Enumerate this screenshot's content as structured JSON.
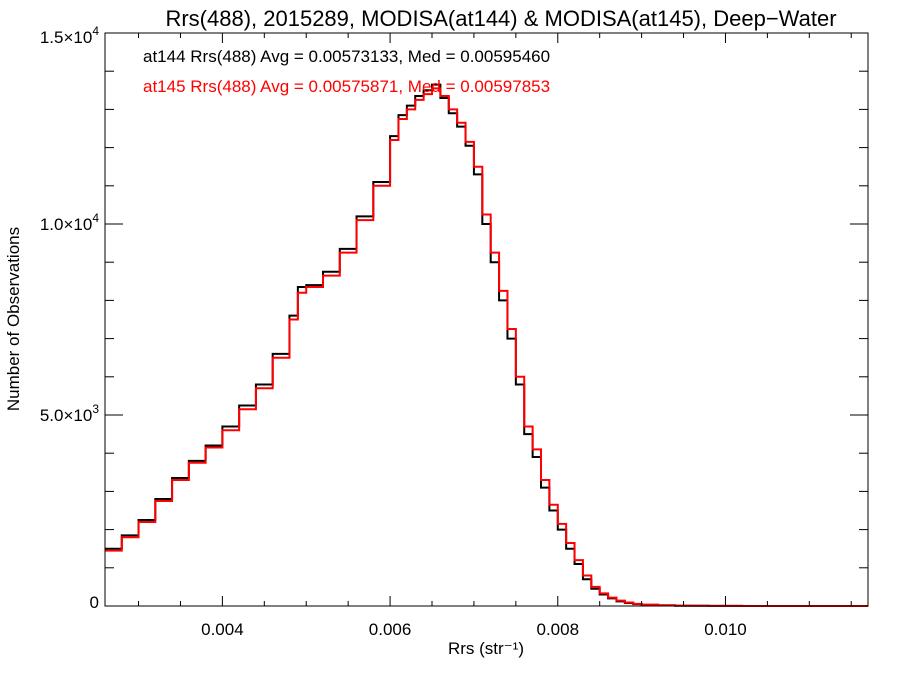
{
  "chart_data": {
    "type": "line",
    "title": "Rrs(488), 2015289, MODISA(at144) & MODISA(at145), Deep−Water",
    "xlabel": "Rrs (str⁻¹)",
    "ylabel": "Number of Observations",
    "xlim": [
      0.0026,
      0.0117
    ],
    "ylim": [
      0,
      15000
    ],
    "x_ticks": [
      {
        "value": 0.004,
        "label": "0.004"
      },
      {
        "value": 0.006,
        "label": "0.006"
      },
      {
        "value": 0.008,
        "label": "0.008"
      },
      {
        "value": 0.01,
        "label": "0.010"
      }
    ],
    "y_ticks": [
      {
        "value": 0,
        "mant": "0",
        "exp": ""
      },
      {
        "value": 5000,
        "mant": "5.0×10",
        "exp": "3"
      },
      {
        "value": 10000,
        "mant": "1.0×10",
        "exp": "4"
      },
      {
        "value": 15000,
        "mant": "1.5×10",
        "exp": "4"
      }
    ],
    "x_minor_step": 0.0005,
    "y_minor_step": 1000,
    "grid": false,
    "series": [
      {
        "name": "at144",
        "color": "#000000",
        "stats_text": "at144 Rrs(488) Avg = 0.00573133, Med = 0.00595460",
        "x": [
          0.0026,
          0.0028,
          0.003,
          0.0032,
          0.0034,
          0.0036,
          0.0038,
          0.004,
          0.0042,
          0.0044,
          0.0046,
          0.0048,
          0.0049,
          0.005,
          0.0052,
          0.0054,
          0.0056,
          0.0058,
          0.006,
          0.0061,
          0.0062,
          0.0063,
          0.0064,
          0.0065,
          0.0066,
          0.0067,
          0.0068,
          0.0069,
          0.007,
          0.0071,
          0.0072,
          0.0073,
          0.0074,
          0.0075,
          0.0076,
          0.0077,
          0.0078,
          0.0079,
          0.008,
          0.0081,
          0.0082,
          0.0083,
          0.0084,
          0.0085,
          0.0086,
          0.0087,
          0.0088,
          0.0089,
          0.009,
          0.0092,
          0.0094,
          0.0096,
          0.0098,
          0.01,
          0.0102,
          0.0105,
          0.011,
          0.0117
        ],
        "y": [
          1500,
          1850,
          2250,
          2800,
          3350,
          3800,
          4200,
          4700,
          5250,
          5800,
          6600,
          7600,
          8350,
          8400,
          8750,
          9350,
          10200,
          11100,
          12300,
          12850,
          13100,
          13350,
          13500,
          13650,
          13300,
          12900,
          12550,
          12050,
          11300,
          10000,
          9000,
          8000,
          7000,
          5800,
          4500,
          3900,
          3100,
          2500,
          2000,
          1500,
          1100,
          700,
          450,
          300,
          200,
          120,
          80,
          50,
          30,
          15,
          8,
          5,
          3,
          2,
          1,
          0,
          0,
          0
        ]
      },
      {
        "name": "at145",
        "color": "#ff0000",
        "stats_text": "at145 Rrs(488) Avg = 0.00575871, Med = 0.00597853",
        "x": [
          0.0026,
          0.0028,
          0.003,
          0.0032,
          0.0034,
          0.0036,
          0.0038,
          0.004,
          0.0042,
          0.0044,
          0.0046,
          0.0048,
          0.0049,
          0.005,
          0.0052,
          0.0054,
          0.0056,
          0.0058,
          0.006,
          0.0061,
          0.0062,
          0.0063,
          0.0064,
          0.0065,
          0.0066,
          0.0067,
          0.0068,
          0.0069,
          0.007,
          0.0071,
          0.0072,
          0.0073,
          0.0074,
          0.0075,
          0.0076,
          0.0077,
          0.0078,
          0.0079,
          0.008,
          0.0081,
          0.0082,
          0.0083,
          0.0084,
          0.0085,
          0.0086,
          0.0087,
          0.0088,
          0.0089,
          0.009,
          0.0092,
          0.0094,
          0.0096,
          0.0098,
          0.01,
          0.0102,
          0.0105,
          0.011,
          0.0117
        ],
        "y": [
          1450,
          1800,
          2200,
          2750,
          3300,
          3750,
          4150,
          4600,
          5150,
          5700,
          6500,
          7500,
          8200,
          8350,
          8650,
          9250,
          10100,
          11000,
          12200,
          12750,
          13000,
          13250,
          13400,
          13550,
          13350,
          13000,
          12650,
          12150,
          11500,
          10250,
          9250,
          8250,
          7250,
          6000,
          4700,
          4100,
          3300,
          2650,
          2150,
          1650,
          1200,
          800,
          500,
          330,
          220,
          140,
          90,
          55,
          35,
          18,
          10,
          6,
          4,
          2,
          1,
          0,
          0,
          0
        ]
      }
    ]
  }
}
